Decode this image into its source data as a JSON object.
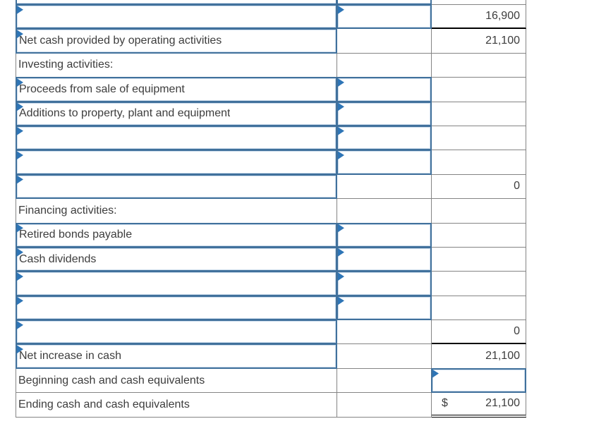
{
  "colors": {
    "input_border": "#41719C",
    "input_inner_edge": "#ccdcec",
    "flag_marker": "#2E75B6",
    "gridline": "#848484",
    "text": "#3d3d3d",
    "subtotal_line": "#000000"
  },
  "table": {
    "currency_symbol": "$",
    "rows": [
      {
        "label": "",
        "label_box": true,
        "mid_box": true,
        "value": "16,900",
        "black_bottom": true
      },
      {
        "label": "Net cash provided by operating activities",
        "label_box": true,
        "value": "21,100"
      },
      {
        "label": "Investing activities:"
      },
      {
        "label": "Proceeds from sale of equipment",
        "label_box": true,
        "mid_box": true
      },
      {
        "label": "Additions to property, plant and equipment",
        "label_box": true,
        "mid_box": true
      },
      {
        "label": "",
        "label_box": true,
        "mid_box": true
      },
      {
        "label": "",
        "label_box": true,
        "mid_box": true
      },
      {
        "label": "",
        "label_box": true,
        "value": "0"
      },
      {
        "label": "Financing activities:"
      },
      {
        "label": "Retired bonds payable",
        "label_box": true,
        "mid_box": true
      },
      {
        "label": "Cash dividends",
        "label_box": true,
        "mid_box": true
      },
      {
        "label": "",
        "label_box": true,
        "mid_box": true
      },
      {
        "label": "",
        "label_box": true,
        "mid_box": true
      },
      {
        "label": "",
        "label_box": true,
        "value": "0",
        "black_bottom": true
      },
      {
        "label": "Net increase in cash",
        "label_box": true,
        "value": "21,100"
      },
      {
        "label": "Beginning cash and cash equivalents",
        "value_box": true
      },
      {
        "label": "Ending cash and cash equivalents",
        "currency": "$",
        "value": "21,100",
        "double_underline": true
      }
    ]
  }
}
